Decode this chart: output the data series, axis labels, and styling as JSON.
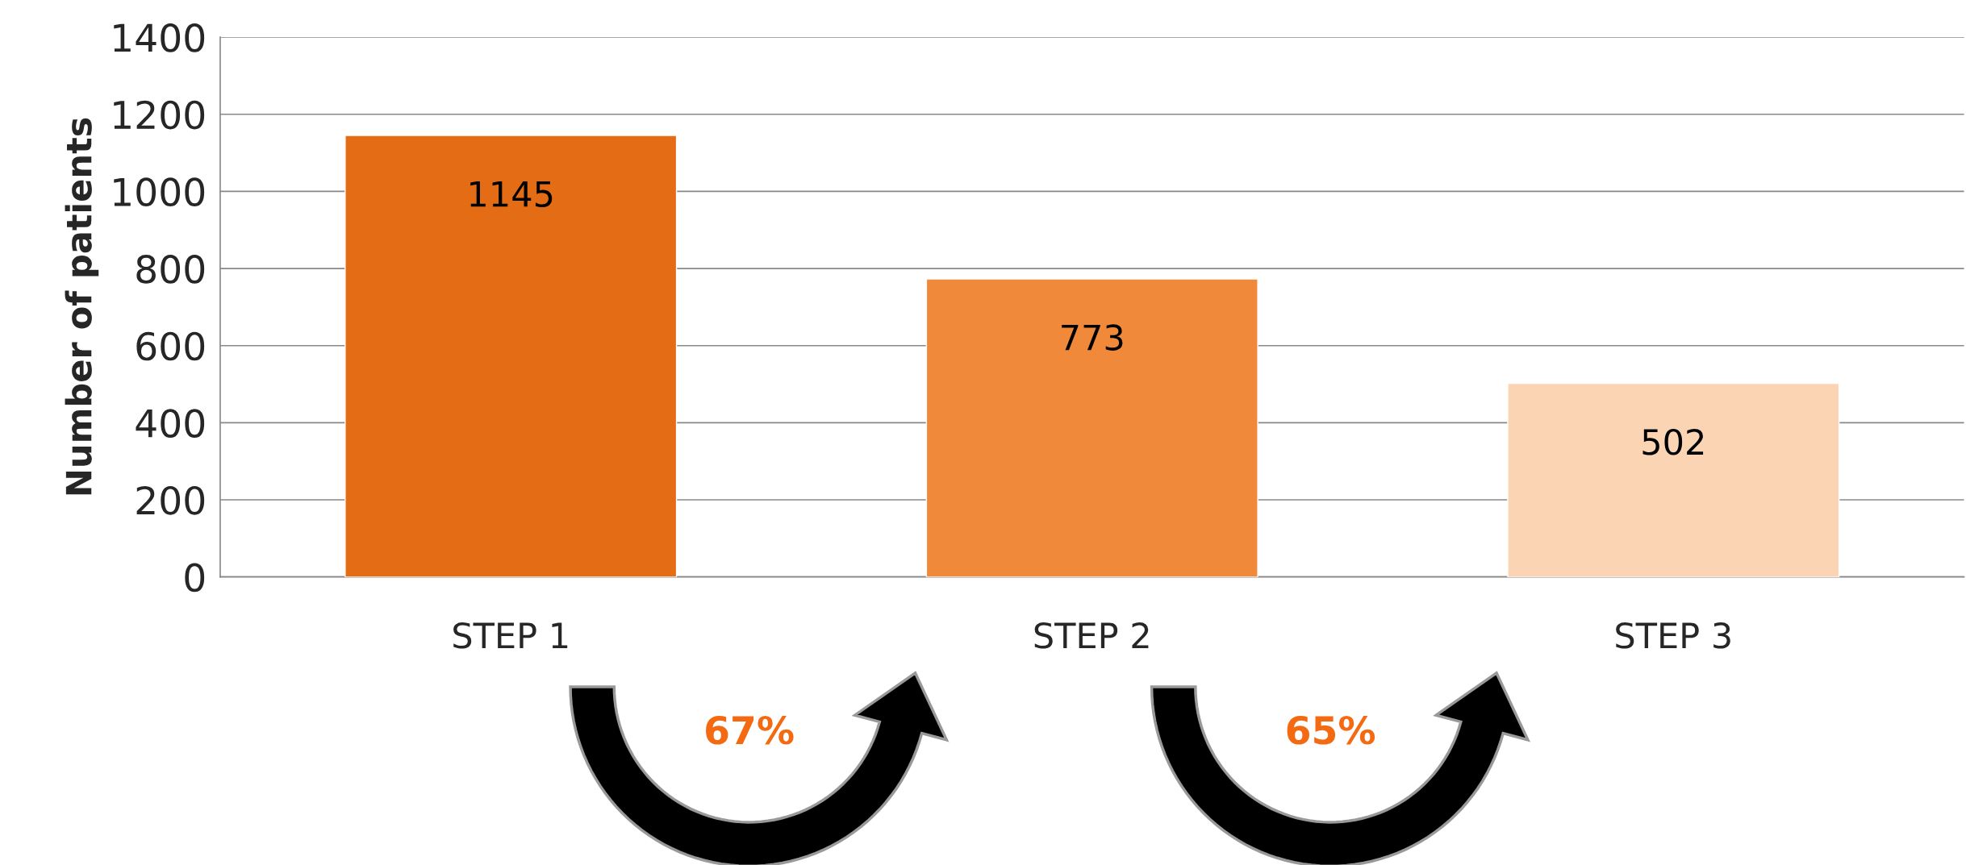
{
  "chart_data": {
    "type": "bar",
    "ylabel": "Number of patients",
    "categories": [
      "STEP 1",
      "STEP 2",
      "STEP 3"
    ],
    "values": [
      1145,
      773,
      502
    ],
    "colors": [
      "#e46c14",
      "#f08a3a",
      "#fbd4b4"
    ],
    "ylim": [
      0,
      1400
    ],
    "yticks": [
      0,
      200,
      400,
      600,
      800,
      1000,
      1200,
      1400
    ],
    "grid": "y",
    "data_labels": true,
    "annotations": [
      "67%",
      "65%"
    ]
  }
}
